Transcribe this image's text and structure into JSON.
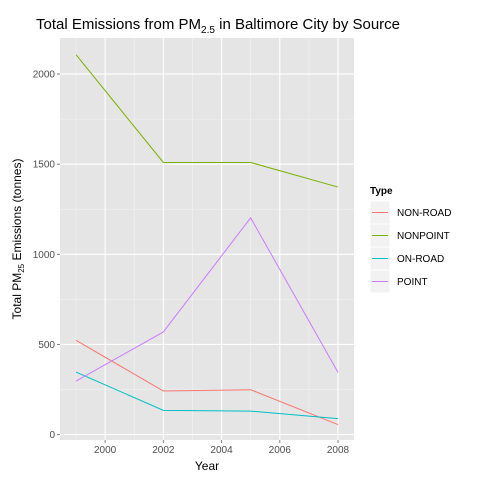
{
  "chart_data": {
    "type": "line",
    "title_main": "Total Emissions from PM",
    "title_sub": "2.5",
    "title_rest": " in Baltimore City by Source",
    "xlabel": "Year",
    "ylabel_main": "Total PM",
    "ylabel_sub": "25",
    "ylabel_rest": " Emissions (tonnes)",
    "x": [
      1999,
      2002,
      2005,
      2008
    ],
    "xlim": [
      1998.45,
      2008.55
    ],
    "ylim": [
      -30,
      2200
    ],
    "x_ticks": [
      2000,
      2002,
      2004,
      2006,
      2008
    ],
    "y_ticks": [
      0,
      500,
      1000,
      1500,
      2000
    ],
    "grid": true,
    "legend_title": "Type",
    "legend_position": "right",
    "series": [
      {
        "name": "NON-ROAD",
        "color": "#F8766D",
        "values": [
          522.9,
          241.8,
          248.9,
          55.8
        ]
      },
      {
        "name": "NONPOINT",
        "color": "#7CAE00",
        "values": [
          2107.6,
          1509.5,
          1509.5,
          1373.2
        ]
      },
      {
        "name": "ON-ROAD",
        "color": "#00BFC4",
        "values": [
          346.8,
          134.3,
          130.4,
          88.3
        ]
      },
      {
        "name": "POINT",
        "color": "#C77CFF",
        "values": [
          296.8,
          569.3,
          1202.5,
          344.97
        ]
      }
    ]
  }
}
